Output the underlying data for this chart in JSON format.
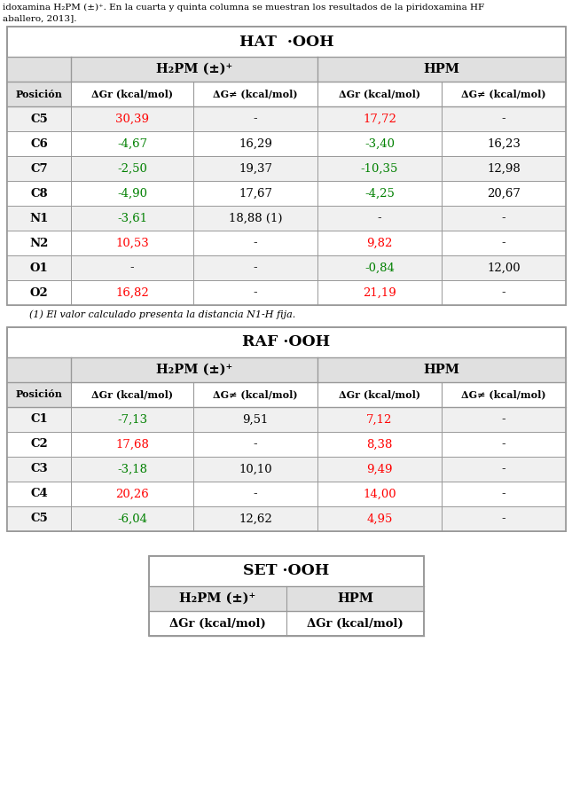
{
  "footnote": "(1) El valor calculado presenta la distancia N1-H fija.",
  "hat_title": "HAT  ·OOH",
  "raf_title": "RAF ·OOH",
  "set_title": "SET ·OOH",
  "h2pm_label": "H₂PM (±)⁺",
  "hpm_label": "HPM",
  "col_headers": [
    "Posición",
    "ΔGr (kcal/mol)",
    "ΔG≠ (kcal/mol)",
    "ΔGr (kcal/mol)",
    "ΔG≠ (kcal/mol)"
  ],
  "hat_rows": [
    [
      "C5",
      "30,39",
      "-",
      "17,72",
      "-"
    ],
    [
      "C6",
      "-4,67",
      "16,29",
      "-3,40",
      "16,23"
    ],
    [
      "C7",
      "-2,50",
      "19,37",
      "-10,35",
      "12,98"
    ],
    [
      "C8",
      "-4,90",
      "17,67",
      "-4,25",
      "20,67"
    ],
    [
      "N1",
      "-3,61",
      "18,88 (1)",
      "-",
      "-"
    ],
    [
      "N2",
      "10,53",
      "-",
      "9,82",
      "-"
    ],
    [
      "O1",
      "-",
      "-",
      "-0,84",
      "12,00"
    ],
    [
      "O2",
      "16,82",
      "-",
      "21,19",
      "-"
    ]
  ],
  "hat_colors": [
    [
      "black",
      "red",
      "black",
      "red",
      "black"
    ],
    [
      "black",
      "green",
      "black",
      "green",
      "black"
    ],
    [
      "black",
      "green",
      "black",
      "green",
      "black"
    ],
    [
      "black",
      "green",
      "black",
      "green",
      "black"
    ],
    [
      "black",
      "green",
      "black",
      "black",
      "black"
    ],
    [
      "black",
      "red",
      "black",
      "red",
      "black"
    ],
    [
      "black",
      "black",
      "black",
      "green",
      "black"
    ],
    [
      "black",
      "red",
      "black",
      "red",
      "black"
    ]
  ],
  "raf_rows": [
    [
      "C1",
      "-7,13",
      "9,51",
      "7,12",
      "-"
    ],
    [
      "C2",
      "17,68",
      "-",
      "8,38",
      "-"
    ],
    [
      "C3",
      "-3,18",
      "10,10",
      "9,49",
      "-"
    ],
    [
      "C4",
      "20,26",
      "-",
      "14,00",
      "-"
    ],
    [
      "C5",
      "-6,04",
      "12,62",
      "4,95",
      "-"
    ]
  ],
  "raf_colors": [
    [
      "black",
      "green",
      "black",
      "red",
      "black"
    ],
    [
      "black",
      "red",
      "black",
      "red",
      "black"
    ],
    [
      "black",
      "green",
      "black",
      "red",
      "black"
    ],
    [
      "black",
      "red",
      "black",
      "red",
      "black"
    ],
    [
      "black",
      "green",
      "black",
      "red",
      "black"
    ]
  ],
  "set_col_headers": [
    "ΔGr (kcal/mol)",
    "ΔGr (kcal/mol)"
  ],
  "bg_color": "#ffffff",
  "header_bg": "#e0e0e0",
  "row_bg_odd": "#f0f0f0",
  "row_bg_even": "#ffffff",
  "border_color": "#999999",
  "top_line1": "idoxamina H₂PM (±)⁺. En la cuarta y quinta columna se muestran los resultados de la piridoxamina HF",
  "top_line2": "aballero, 2013]."
}
